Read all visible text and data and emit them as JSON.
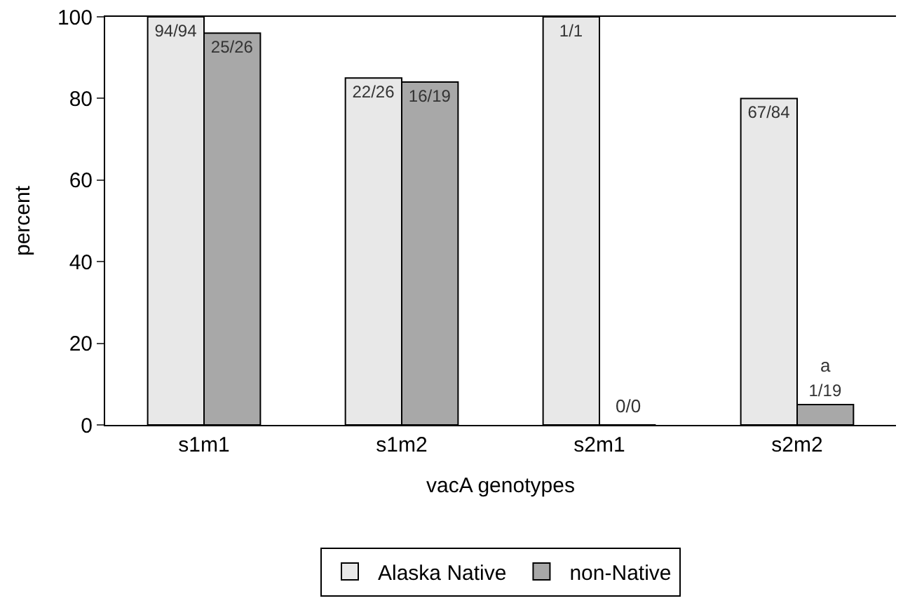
{
  "chart_data": {
    "type": "bar",
    "xlabel": "vacA genotypes",
    "ylabel": "percent",
    "categories": [
      "s1m1",
      "s1m2",
      "s2m1",
      "s2m2"
    ],
    "series": [
      {
        "name": "Alaska Native",
        "color": "#e8e8e8",
        "values": [
          100,
          85,
          100,
          80
        ],
        "value_labels": [
          "94/94",
          "22/26",
          "1/1",
          "67/84"
        ]
      },
      {
        "name": "non-Native",
        "color": "#a8a8a8",
        "values": [
          96,
          84,
          0,
          5
        ],
        "value_labels": [
          "25/26",
          "16/19",
          null,
          "1/19"
        ]
      }
    ],
    "annotations": [
      {
        "text": "0/0",
        "x": "s2m1",
        "y": 0
      },
      {
        "text": "a",
        "x": "s2m2",
        "y": 10
      }
    ],
    "ylim": [
      0,
      100
    ],
    "yticks": [
      0,
      20,
      40,
      60,
      80,
      100
    ],
    "legend": "bottom"
  }
}
